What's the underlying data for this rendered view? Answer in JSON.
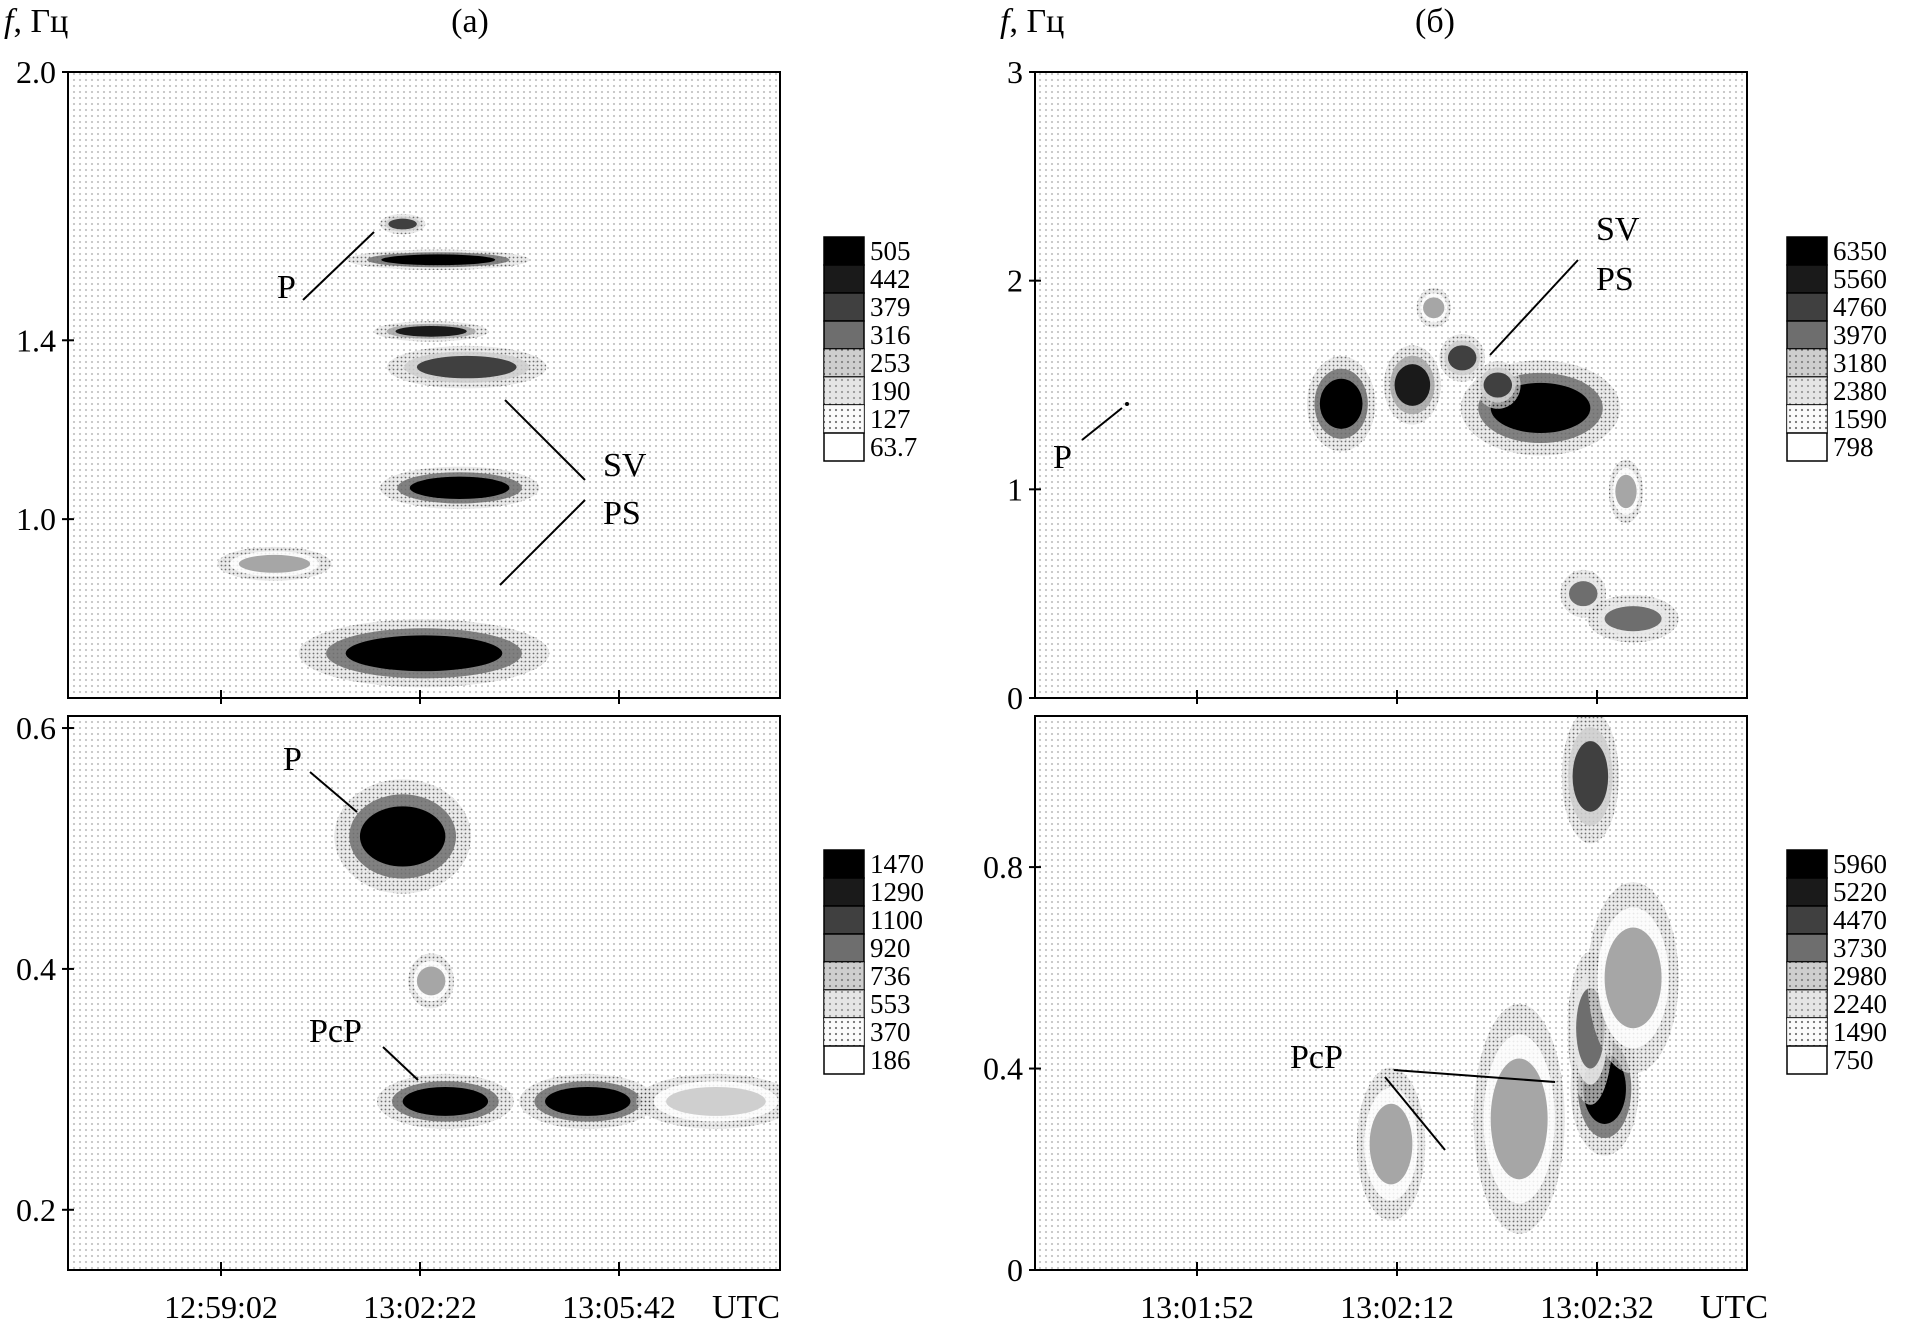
{
  "figure": {
    "yaxis_symbol": "f",
    "yaxis_unit": ", Гц",
    "time_unit": "UTC",
    "panel_a_title": "(а)",
    "panel_b_title": "(б)"
  },
  "chart_data": [
    {
      "id": "a-top",
      "type": "heatmap",
      "panel": "(а)",
      "ylabel": "f, Гц",
      "ylim": [
        0.6,
        2.0
      ],
      "yticks": [
        1.0,
        1.4,
        2.0
      ],
      "ytick_labels": [
        "1.0",
        "1.4",
        "2.0"
      ],
      "xticks": [
        "12:59:02",
        "13:02:22",
        "13:05:42"
      ],
      "legend": {
        "levels": [
          "505",
          "442",
          "379",
          "316",
          "253",
          "190",
          "127",
          "63.7"
        ],
        "placement": "right"
      },
      "annotations": [
        "P",
        "SV",
        "PS"
      ],
      "blobs": [
        {
          "x": 0.52,
          "y": 1.58,
          "level": 0,
          "rx": 0.08,
          "ry": 0.012
        },
        {
          "x": 0.56,
          "y": 1.34,
          "level": 2,
          "rx": 0.07,
          "ry": 0.025
        },
        {
          "x": 0.51,
          "y": 1.42,
          "level": 1,
          "rx": 0.05,
          "ry": 0.012
        },
        {
          "x": 0.55,
          "y": 1.07,
          "level": 0,
          "rx": 0.07,
          "ry": 0.025
        },
        {
          "x": 0.47,
          "y": 1.66,
          "level": 2,
          "rx": 0.02,
          "ry": 0.012
        },
        {
          "x": 0.5,
          "y": 0.7,
          "level": 0,
          "rx": 0.11,
          "ry": 0.04
        },
        {
          "x": 0.29,
          "y": 0.9,
          "level": 4,
          "rx": 0.05,
          "ry": 0.02
        }
      ]
    },
    {
      "id": "a-bottom",
      "type": "heatmap",
      "panel": "(а)",
      "ylim": [
        0.15,
        0.61
      ],
      "yticks": [
        0.2,
        0.4,
        0.6
      ],
      "ytick_labels": [
        "0.2",
        "0.4",
        "0.6"
      ],
      "xticks": [
        "12:59:02",
        "13:02:22",
        "13:05:42"
      ],
      "legend": {
        "levels": [
          "1470",
          "1290",
          "1100",
          "920",
          "736",
          "553",
          "370",
          "186"
        ],
        "placement": "right"
      },
      "annotations": [
        "P",
        "PcP"
      ],
      "blobs": [
        {
          "x": 0.47,
          "y": 0.51,
          "level": 0,
          "rx": 0.06,
          "ry": 0.025
        },
        {
          "x": 0.53,
          "y": 0.29,
          "level": 0,
          "rx": 0.06,
          "ry": 0.012
        },
        {
          "x": 0.73,
          "y": 0.29,
          "level": 0,
          "rx": 0.06,
          "ry": 0.012
        },
        {
          "x": 0.91,
          "y": 0.29,
          "level": 5,
          "rx": 0.07,
          "ry": 0.012
        },
        {
          "x": 0.51,
          "y": 0.39,
          "level": 4,
          "rx": 0.02,
          "ry": 0.012
        }
      ]
    },
    {
      "id": "b-top",
      "type": "heatmap",
      "panel": "(б)",
      "ylabel": "f, Гц",
      "ylim": [
        0,
        3
      ],
      "yticks": [
        0,
        1,
        2,
        3
      ],
      "ytick_labels": [
        "0",
        "1",
        "2",
        "3"
      ],
      "xticks": [
        "13:01:52",
        "13:02:12",
        "13:02:32"
      ],
      "legend": {
        "levels": [
          "6350",
          "5560",
          "4760",
          "3970",
          "3180",
          "2380",
          "1590",
          "798"
        ],
        "placement": "right"
      },
      "annotations": [
        "P",
        "SV",
        "PS"
      ],
      "blobs": [
        {
          "x": 0.43,
          "y": 1.41,
          "level": 0,
          "rx": 0.03,
          "ry": 0.12
        },
        {
          "x": 0.53,
          "y": 1.5,
          "level": 1,
          "rx": 0.025,
          "ry": 0.1
        },
        {
          "x": 0.71,
          "y": 1.39,
          "level": 0,
          "rx": 0.07,
          "ry": 0.12
        },
        {
          "x": 0.6,
          "y": 1.63,
          "level": 2,
          "rx": 0.02,
          "ry": 0.06
        },
        {
          "x": 0.65,
          "y": 1.5,
          "level": 2,
          "rx": 0.02,
          "ry": 0.06
        },
        {
          "x": 0.56,
          "y": 1.87,
          "level": 4,
          "rx": 0.015,
          "ry": 0.05
        },
        {
          "x": 0.77,
          "y": 0.5,
          "level": 3,
          "rx": 0.02,
          "ry": 0.06
        },
        {
          "x": 0.84,
          "y": 0.38,
          "level": 3,
          "rx": 0.04,
          "ry": 0.06
        },
        {
          "x": 0.83,
          "y": 0.99,
          "level": 4,
          "rx": 0.015,
          "ry": 0.08
        }
      ]
    },
    {
      "id": "b-bottom",
      "type": "heatmap",
      "panel": "(б)",
      "ylim": [
        0,
        1.1
      ],
      "yticks": [
        0,
        0.4,
        0.8
      ],
      "ytick_labels": [
        "0",
        "0.4",
        "0.8"
      ],
      "xticks": [
        "13:01:52",
        "13:02:12",
        "13:02:32"
      ],
      "legend": {
        "levels": [
          "5960",
          "5220",
          "4470",
          "3730",
          "2980",
          "2240",
          "1490",
          "750"
        ],
        "placement": "right"
      },
      "annotations": [
        "PcP"
      ],
      "blobs": [
        {
          "x": 0.8,
          "y": 0.36,
          "level": 0,
          "rx": 0.03,
          "ry": 0.07
        },
        {
          "x": 0.78,
          "y": 0.48,
          "level": 3,
          "rx": 0.02,
          "ry": 0.08
        },
        {
          "x": 0.78,
          "y": 0.98,
          "level": 2,
          "rx": 0.025,
          "ry": 0.07
        },
        {
          "x": 0.68,
          "y": 0.3,
          "level": 4,
          "rx": 0.04,
          "ry": 0.12
        },
        {
          "x": 0.84,
          "y": 0.58,
          "level": 4,
          "rx": 0.04,
          "ry": 0.1
        },
        {
          "x": 0.5,
          "y": 0.25,
          "level": 4,
          "rx": 0.03,
          "ry": 0.08
        }
      ]
    }
  ],
  "shade_colors": [
    "#000000",
    "#1a1a1a",
    "#404040",
    "#6e6e6e",
    "#a6a6a6",
    "#cfcfcf",
    "#e9e9e9",
    "#ffffff"
  ]
}
